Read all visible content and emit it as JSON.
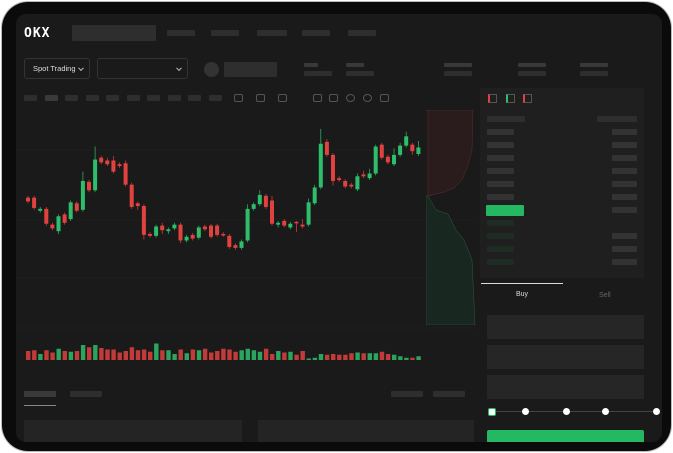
{
  "header": {
    "logo": "OKX"
  },
  "market": {
    "mode_label": "Spot Trading",
    "pair_selector": ""
  },
  "order_form": {
    "tabs": [
      {
        "label": "Buy",
        "active": true
      },
      {
        "label": "Sell",
        "active": false
      }
    ],
    "slider_value_percent": 0,
    "submit_color": "#25b862"
  },
  "colors": {
    "up": "#2ebd6b",
    "down": "#e0423f",
    "accent": "#25b862",
    "background": "#1a1a1a"
  },
  "chart_data": {
    "type": "candlestick",
    "candles": [
      [
        67,
        69,
        61,
        63
      ],
      [
        67,
        69,
        54,
        56
      ],
      [
        53,
        57,
        51,
        55
      ],
      [
        55,
        57,
        37,
        39
      ],
      [
        38,
        40,
        32,
        34
      ],
      [
        31,
        49,
        28,
        47
      ],
      [
        49,
        51,
        38,
        40
      ],
      [
        44,
        64,
        42,
        62
      ],
      [
        61,
        63,
        51,
        53
      ],
      [
        54,
        95,
        52,
        85
      ],
      [
        84,
        86,
        73,
        75
      ],
      [
        75,
        122,
        73,
        108
      ],
      [
        110,
        112,
        103,
        105
      ],
      [
        107,
        110,
        101,
        103
      ],
      [
        107,
        112,
        93,
        95
      ],
      [
        103,
        105,
        99,
        101
      ],
      [
        104,
        107,
        79,
        81
      ],
      [
        81,
        83,
        55,
        57
      ],
      [
        61,
        63,
        54,
        58
      ],
      [
        58,
        60,
        22,
        27
      ],
      [
        28,
        30,
        24,
        26
      ],
      [
        26,
        38,
        24,
        36
      ],
      [
        37,
        40,
        28,
        32
      ],
      [
        31,
        35,
        28,
        33
      ],
      [
        34,
        40,
        32,
        38
      ],
      [
        38,
        40,
        18,
        21
      ],
      [
        21,
        27,
        19,
        25
      ],
      [
        27,
        29,
        21,
        23
      ],
      [
        24,
        37,
        22,
        35
      ],
      [
        36,
        38,
        31,
        33
      ],
      [
        37,
        39,
        23,
        25
      ],
      [
        37,
        39,
        25,
        27
      ],
      [
        28,
        30,
        25,
        27
      ],
      [
        26,
        28,
        12,
        14
      ],
      [
        16,
        18,
        11,
        13
      ],
      [
        13,
        22,
        11,
        20
      ],
      [
        21,
        60,
        19,
        55
      ],
      [
        55,
        62,
        53,
        60
      ],
      [
        60,
        75,
        58,
        70
      ],
      [
        69,
        71,
        55,
        57
      ],
      [
        64,
        69,
        37,
        39
      ],
      [
        38,
        42,
        35,
        40
      ],
      [
        42,
        44,
        35,
        37
      ],
      [
        35,
        41,
        33,
        39
      ],
      [
        41,
        42,
        30,
        40
      ],
      [
        38,
        44,
        34,
        36
      ],
      [
        38,
        66,
        36,
        62
      ],
      [
        61,
        81,
        59,
        78
      ],
      [
        78,
        141,
        76,
        125
      ],
      [
        127,
        130,
        111,
        113
      ],
      [
        113,
        115,
        80,
        85
      ],
      [
        88,
        90,
        84,
        86
      ],
      [
        85,
        87,
        77,
        79
      ],
      [
        81,
        83,
        77,
        79
      ],
      [
        76,
        93,
        74,
        90
      ],
      [
        92,
        96,
        88,
        90
      ],
      [
        88,
        98,
        86,
        93
      ],
      [
        93,
        124,
        91,
        122
      ],
      [
        124,
        126,
        108,
        110
      ],
      [
        111,
        113,
        103,
        105
      ],
      [
        103,
        120,
        101,
        113
      ],
      [
        113,
        126,
        111,
        123
      ],
      [
        123,
        138,
        121,
        133
      ],
      [
        124,
        126,
        113,
        117
      ],
      [
        114,
        128,
        112,
        121
      ]
    ],
    "volume": [
      12,
      13,
      8,
      13,
      10,
      15,
      12,
      11,
      12,
      20,
      17,
      20,
      16,
      14,
      14,
      10,
      12,
      17,
      13,
      14,
      11,
      22,
      13,
      13,
      8,
      14,
      9,
      14,
      13,
      15,
      10,
      12,
      15,
      14,
      11,
      13,
      15,
      13,
      11,
      15,
      8,
      12,
      10,
      11,
      7,
      12,
      2,
      3,
      8,
      7,
      8,
      7,
      7,
      9,
      10,
      9,
      9,
      9,
      11,
      8,
      7,
      5,
      3,
      3,
      5
    ]
  }
}
